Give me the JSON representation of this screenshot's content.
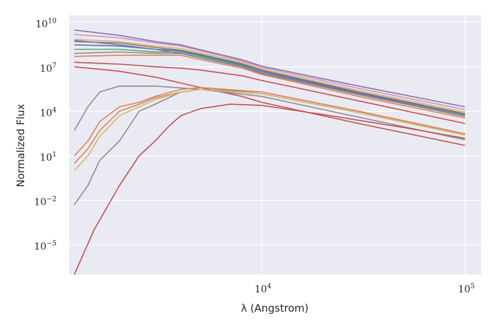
{
  "chart_data": {
    "type": "line",
    "xlabel": "λ (Angstrom)",
    "ylabel": "Normalized Flux",
    "xscale": "log",
    "yscale": "log",
    "xlim": [
      1130,
      120000
    ],
    "ylim": [
      1e-07,
      30000000000.0
    ],
    "grid": true,
    "background": "#eaeaf2",
    "x_ticks": [
      {
        "value": 10000,
        "base": "10",
        "exp": "4"
      },
      {
        "value": 100000,
        "base": "10",
        "exp": "5"
      }
    ],
    "y_ticks": [
      {
        "value": 10000000000.0,
        "base": "10",
        "exp": "10"
      },
      {
        "value": 10000000.0,
        "base": "10",
        "exp": "7"
      },
      {
        "value": 10000.0,
        "base": "10",
        "exp": "4"
      },
      {
        "value": 10,
        "base": "10",
        "exp": "1"
      },
      {
        "value": 0.01,
        "base": "10",
        "exp": "−2"
      },
      {
        "value": 1e-05,
        "base": "10",
        "exp": "−5"
      }
    ],
    "series": [
      {
        "color": "#8172b3",
        "points": [
          [
            1200,
            3000000000.0
          ],
          [
            2000,
            1300000000.0
          ],
          [
            3000,
            500000000.0
          ],
          [
            4000,
            300000000.0
          ],
          [
            5000,
            140000000.0
          ],
          [
            8000,
            30000000.0
          ],
          [
            10000,
            11000000.0
          ],
          [
            30000,
            500000.0
          ],
          [
            100000,
            20000.0
          ]
        ]
      },
      {
        "color": "#da8bc3",
        "points": [
          [
            1200,
            1500000000.0
          ],
          [
            2000,
            900000000.0
          ],
          [
            3000,
            400000000.0
          ],
          [
            4000,
            250000000.0
          ],
          [
            5000,
            120000000.0
          ],
          [
            8000,
            25000000.0
          ],
          [
            10000,
            9000000.0
          ],
          [
            30000,
            350000.0
          ],
          [
            100000,
            13000.0
          ]
        ]
      },
      {
        "color": "#ccb974",
        "points": [
          [
            1200,
            700000000.0
          ],
          [
            2000,
            500000000.0
          ],
          [
            3000,
            250000000.0
          ],
          [
            4000,
            170000000.0
          ],
          [
            5000,
            90000000.0
          ],
          [
            8000,
            20000000.0
          ],
          [
            10000,
            7000000.0
          ],
          [
            30000,
            250000.0
          ],
          [
            100000,
            9000.0
          ]
        ]
      },
      {
        "color": "#937860",
        "points": [
          [
            1200,
            500000000.0
          ],
          [
            2000,
            400000000.0
          ],
          [
            3000,
            200000000.0
          ],
          [
            4000,
            130000000.0
          ],
          [
            5000,
            70000000.0
          ],
          [
            8000,
            16000000.0
          ],
          [
            10000,
            6000000.0
          ],
          [
            30000,
            200000.0
          ],
          [
            100000,
            7000.0
          ]
        ]
      },
      {
        "color": "#4c72b0",
        "points": [
          [
            1200,
            300000000.0
          ],
          [
            2000,
            250000000.0
          ],
          [
            3000,
            150000000.0
          ],
          [
            4000,
            120000000.0
          ],
          [
            5000,
            60000000.0
          ],
          [
            8000,
            14000000.0
          ],
          [
            10000,
            5000000.0
          ],
          [
            30000,
            170000.0
          ],
          [
            100000,
            6000.0
          ]
        ]
      },
      {
        "color": "#55a868",
        "points": [
          [
            1200,
            150000000.0
          ],
          [
            2000,
            150000000.0
          ],
          [
            3000,
            100000000.0
          ],
          [
            4000,
            100000000.0
          ],
          [
            5000,
            50000000.0
          ],
          [
            8000,
            12000000.0
          ],
          [
            10000,
            4000000.0
          ],
          [
            30000,
            150000.0
          ],
          [
            100000,
            5000.0
          ]
        ]
      },
      {
        "color": "#8c8c8c",
        "points": [
          [
            1200,
            80000000.0
          ],
          [
            2000,
            100000000.0
          ],
          [
            3000,
            80000000.0
          ],
          [
            4000,
            80000000.0
          ],
          [
            5000,
            40000000.0
          ],
          [
            8000,
            10000000.0
          ],
          [
            10000,
            3500000.0
          ],
          [
            30000,
            130000.0
          ],
          [
            100000,
            4500.0
          ]
        ]
      },
      {
        "color": "#dd8452",
        "points": [
          [
            1200,
            50000000.0
          ],
          [
            2000,
            60000000.0
          ],
          [
            3000,
            60000000.0
          ],
          [
            4000,
            60000000.0
          ],
          [
            5000,
            30000000.0
          ],
          [
            8000,
            8000000.0
          ],
          [
            10000,
            3000000.0
          ],
          [
            30000,
            100000.0
          ],
          [
            100000,
            3500.0
          ]
        ]
      },
      {
        "color": "#c44e52",
        "points": [
          [
            1200,
            20000000.0
          ],
          [
            2000,
            15000000.0
          ],
          [
            3000,
            10000000.0
          ],
          [
            4000,
            8000000.0
          ],
          [
            5000,
            6000000.0
          ],
          [
            8000,
            2500000.0
          ],
          [
            10000,
            1200000.0
          ],
          [
            30000,
            50000.0
          ],
          [
            100000,
            1500.0
          ]
        ]
      },
      {
        "color": "#8172b3",
        "points": [
          [
            1200,
            600000000.0
          ],
          [
            2000,
            300000000.0
          ],
          [
            3000,
            150000000.0
          ],
          [
            4000,
            80000000.0
          ],
          [
            5000,
            40000000.0
          ],
          [
            8000,
            10000000.0
          ],
          [
            10000,
            4000000.0
          ],
          [
            30000,
            150000.0
          ],
          [
            100000,
            6000.0
          ]
        ]
      },
      {
        "color": "#c44e52",
        "points": [
          [
            1200,
            10000000.0
          ],
          [
            2000,
            5000000.0
          ],
          [
            3000,
            2000000.0
          ],
          [
            4000,
            800000.0
          ],
          [
            5000,
            400000.0
          ],
          [
            8000,
            100000.0
          ],
          [
            10000,
            40000.0
          ],
          [
            30000,
            1500.0
          ],
          [
            100000,
            50
          ]
        ]
      },
      {
        "color": "#8c8c8c",
        "points": [
          [
            1200,
            500
          ],
          [
            1400,
            20000.0
          ],
          [
            1600,
            200000.0
          ],
          [
            2000,
            500000.0
          ],
          [
            3000,
            500000.0
          ],
          [
            5000,
            300000.0
          ],
          [
            10000,
            100000.0
          ],
          [
            30000,
            4000.0
          ],
          [
            100000,
            120
          ]
        ]
      },
      {
        "color": "#8c8c8c",
        "points": [
          [
            1200,
            0.005
          ],
          [
            1400,
            0.1
          ],
          [
            1600,
            5
          ],
          [
            2000,
            100
          ],
          [
            2500,
            10000.0
          ],
          [
            3000,
            30000.0
          ],
          [
            4000,
            200000.0
          ],
          [
            5000,
            300000.0
          ],
          [
            10000,
            200000.0
          ],
          [
            30000,
            10000.0
          ],
          [
            100000,
            300
          ]
        ]
      },
      {
        "color": "#dd8452",
        "points": [
          [
            1200,
            10
          ],
          [
            1400,
            100
          ],
          [
            1600,
            2000.0
          ],
          [
            2000,
            20000.0
          ],
          [
            2500,
            40000.0
          ],
          [
            3000,
            100000.0
          ],
          [
            4000,
            300000.0
          ],
          [
            5000,
            400000.0
          ],
          [
            10000,
            200000.0
          ],
          [
            30000,
            10000.0
          ],
          [
            100000,
            300
          ]
        ]
      },
      {
        "color": "#dd8452",
        "points": [
          [
            1200,
            3
          ],
          [
            1400,
            30
          ],
          [
            1600,
            500
          ],
          [
            2000,
            10000.0
          ],
          [
            2500,
            30000.0
          ],
          [
            3000,
            80000.0
          ],
          [
            4000,
            200000.0
          ],
          [
            5000,
            300000.0
          ],
          [
            10000,
            150000.0
          ],
          [
            30000,
            8000.0
          ],
          [
            100000,
            250
          ]
        ]
      },
      {
        "color": "#ccb974",
        "points": [
          [
            1200,
            1
          ],
          [
            1400,
            10
          ],
          [
            1600,
            200
          ],
          [
            2000,
            5000.0
          ],
          [
            2500,
            20000.0
          ],
          [
            3000,
            60000.0
          ],
          [
            4000,
            200000.0
          ],
          [
            5000,
            300000.0
          ],
          [
            10000,
            150000.0
          ],
          [
            30000,
            8000.0
          ],
          [
            100000,
            250
          ]
        ]
      },
      {
        "color": "#c44e52",
        "points": [
          [
            1200,
            1e-07
          ],
          [
            1500,
            0.0001
          ],
          [
            2000,
            0.1
          ],
          [
            2500,
            10
          ],
          [
            3000,
            100
          ],
          [
            3500,
            1000.0
          ],
          [
            4000,
            5000.0
          ],
          [
            5000,
            15000.0
          ],
          [
            7000,
            30000.0
          ],
          [
            10000,
            25000.0
          ],
          [
            20000,
            6000.0
          ],
          [
            50000,
            800
          ],
          [
            100000,
            150
          ]
        ]
      }
    ]
  }
}
